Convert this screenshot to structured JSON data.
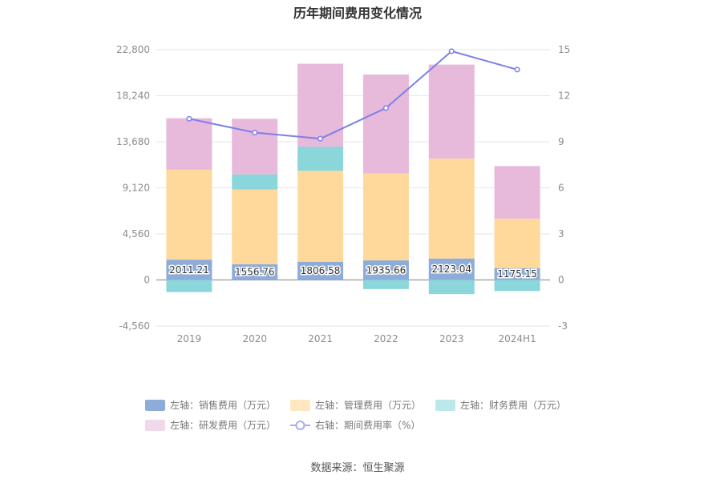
{
  "chart_data": {
    "type": "bar",
    "title": "历年期间费用变化情况",
    "categories": [
      "2019",
      "2020",
      "2021",
      "2022",
      "2023",
      "2024H1"
    ],
    "left_axis": {
      "ticks": [
        "22,800",
        "18,240",
        "13,680",
        "9,120",
        "4,560",
        "0",
        "-4,560"
      ],
      "ylim": [
        -4560,
        22800
      ]
    },
    "right_axis": {
      "ticks": [
        "15",
        "12",
        "9",
        "6",
        "3",
        "0",
        "-3"
      ],
      "ylim": [
        -3,
        15
      ]
    },
    "series": [
      {
        "name": "左轴：销售费用（万元）",
        "color": "#8eacd9",
        "values": [
          2011.21,
          1556.76,
          1806.58,
          1935.66,
          2123.04,
          1175.15
        ]
      },
      {
        "name": "左轴：管理费用（万元）",
        "color": "#ffd89c",
        "values": [
          8900,
          7400,
          9000,
          8600,
          9900,
          4900
        ]
      },
      {
        "name": "左轴：财务费用（万元）",
        "color": "#8bd6da",
        "values": [
          -1200,
          1500,
          2400,
          -900,
          -1400,
          -1100
        ]
      },
      {
        "name": "左轴：研发费用（万元）",
        "color": "#e7b9da",
        "values": [
          5100,
          5500,
          8200,
          9800,
          9300,
          5200
        ]
      }
    ],
    "line_series": {
      "name": "右轴：期间费用率（%）",
      "color": "#7b80ea",
      "values": [
        10.5,
        9.6,
        9.2,
        11.2,
        14.9,
        13.7
      ]
    },
    "data_labels": [
      "2011.21",
      "1556.76",
      "1806.58",
      "1935.66",
      "2123.04",
      "1175.15"
    ]
  },
  "legend": [
    {
      "label": "左轴：销售费用（万元）",
      "color": "#8eacd9",
      "kind": "bar"
    },
    {
      "label": "左轴：管理费用（万元）",
      "color": "#ffe7c2",
      "kind": "bar"
    },
    {
      "label": "左轴：财务费用（万元）",
      "color": "#bde8ea",
      "kind": "bar"
    },
    {
      "label": "左轴：研发费用（万元）",
      "color": "#f1d8eb",
      "kind": "bar"
    },
    {
      "label": "右轴：期间费用率（%）",
      "color": "#a9adf0",
      "kind": "line"
    }
  ],
  "source": "数据来源：恒生聚源"
}
